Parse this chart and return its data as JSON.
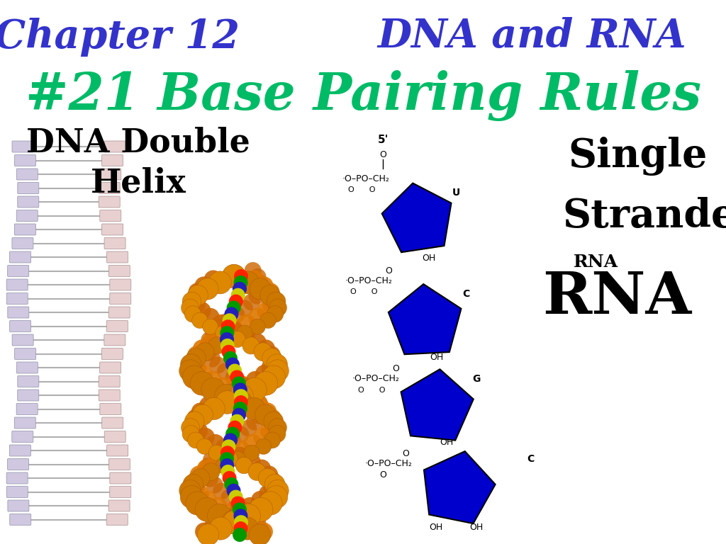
{
  "background_color": "#ffffff",
  "title_left": "Chapter 12",
  "title_right": "DNA and RNA",
  "title_color": "#3333cc",
  "subtitle": "#21 Base Pairing Rules",
  "subtitle_color": "#00bb66",
  "label_dna": "DNA Double\nHelix",
  "label_dna_color": "#000000",
  "label_single": "Single",
  "label_stranded": "Stranded",
  "label_rna_small": "RNA",
  "label_rna_big": "RNA",
  "label_right_color": "#000000",
  "pentagon_color": "#0000cc",
  "figsize": [
    10.24,
    7.68
  ],
  "dpi": 100
}
